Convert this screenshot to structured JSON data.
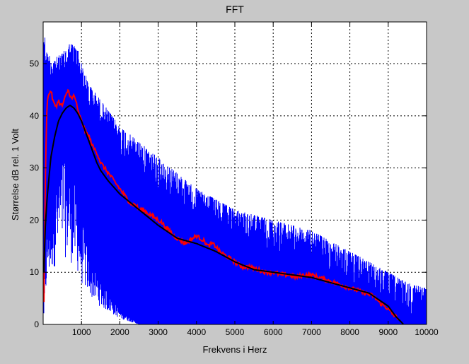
{
  "chart_data": {
    "type": "line",
    "title": "FFT",
    "xlabel": "Frekvens i Herz",
    "ylabel": "Størrelse dB rel. 1 Volt",
    "xlim": [
      0,
      10000
    ],
    "ylim": [
      0,
      58
    ],
    "grid": true,
    "x_ticks": [
      1000,
      2000,
      3000,
      4000,
      5000,
      6000,
      7000,
      8000,
      9000,
      10000
    ],
    "x_tick_labels": [
      "1000",
      "2000",
      "3000",
      "4000",
      "5000",
      "6000",
      "7000",
      "8000",
      "9000",
      "10000"
    ],
    "y_ticks": [
      0,
      10,
      20,
      30,
      40,
      50
    ],
    "y_tick_labels": [
      "0",
      "10",
      "20",
      "30",
      "40",
      "50"
    ],
    "background": "#c8c8c8",
    "plot_background": "#ffffff",
    "series": [
      {
        "kind": "raw-spectrum",
        "color": "#0000ff",
        "upper_envelope": {
          "x": [
            0,
            100,
            300,
            500,
            700,
            900,
            1000,
            1200,
            1500,
            2000,
            2500,
            3000,
            3500,
            4000,
            4500,
            5000,
            5500,
            6000,
            6500,
            7000,
            7500,
            8000,
            8500,
            9000,
            9500,
            10000
          ],
          "y": [
            58,
            52,
            51,
            52,
            54,
            53,
            50,
            46,
            43,
            38,
            35,
            32,
            29,
            26,
            24,
            22,
            21,
            20,
            19,
            18,
            16,
            14,
            12,
            10,
            8,
            7
          ]
        },
        "lower_envelope": {
          "x": [
            0,
            100,
            300,
            500,
            700,
            900,
            1000,
            1200,
            1500,
            2000,
            2500,
            3000,
            3500,
            4000,
            4500,
            5000,
            5500,
            6000,
            6500,
            7000,
            7500,
            8000,
            8500,
            9000,
            9500,
            10000
          ],
          "y": [
            0,
            14,
            20,
            24,
            22,
            18,
            14,
            10,
            6,
            2,
            0,
            0,
            0,
            0,
            0,
            0,
            0,
            0,
            0,
            0,
            0,
            0,
            0,
            0,
            0,
            0
          ]
        }
      },
      {
        "kind": "smoothed",
        "color": "#ff0000",
        "x": [
          20,
          50,
          100,
          150,
          200,
          250,
          300,
          350,
          400,
          450,
          500,
          550,
          600,
          650,
          700,
          750,
          800,
          850,
          900,
          950,
          1000,
          1100,
          1200,
          1300,
          1400,
          1500,
          1600,
          1700,
          1800,
          1900,
          2000,
          2100,
          2200,
          2300,
          2400,
          2500,
          2600,
          2700,
          2800,
          2900,
          3000,
          3100,
          3200,
          3300,
          3400,
          3500,
          3600,
          3700,
          3800,
          3900,
          4000,
          4100,
          4200,
          4300,
          4400,
          4500,
          4600,
          4700,
          4800,
          4900,
          5000,
          5200,
          5400,
          5600,
          5800,
          6000,
          6200,
          6400,
          6600,
          6800,
          7000,
          7200,
          7400,
          7600,
          7800,
          8000,
          8200,
          8400,
          8600,
          8800,
          9000,
          9100,
          9200,
          9300
        ],
        "y": [
          4,
          25,
          43,
          44,
          45,
          43,
          42,
          42,
          43,
          42,
          42,
          43,
          44,
          45,
          44,
          43,
          44,
          43,
          41,
          40,
          39,
          37,
          36,
          34,
          33,
          31,
          30,
          29,
          28,
          27,
          26,
          25,
          24,
          23,
          23,
          22,
          22,
          21.5,
          21,
          20.5,
          20,
          19.5,
          18.5,
          18,
          17,
          16.5,
          16,
          15.5,
          16,
          16.5,
          17,
          16.5,
          16,
          15,
          15.5,
          15,
          14,
          13.5,
          13,
          12.5,
          12,
          11,
          11,
          10.5,
          10,
          10,
          9.5,
          9.5,
          9,
          9.5,
          9.5,
          9,
          8.5,
          8,
          7.5,
          7,
          6.5,
          6,
          5.5,
          4,
          3,
          2,
          1.5,
          1
        ]
      },
      {
        "kind": "fit",
        "color": "#000000",
        "x": [
          20,
          50,
          100,
          150,
          200,
          300,
          400,
          500,
          600,
          700,
          800,
          900,
          1000,
          1100,
          1200,
          1300,
          1400,
          1500,
          1700,
          2000,
          2500,
          3000,
          3500,
          4000,
          4500,
          5000,
          5500,
          6000,
          6500,
          7000,
          7500,
          8000,
          8500,
          9000,
          9200,
          9400
        ],
        "y": [
          10,
          18,
          24,
          28,
          32,
          36,
          39,
          40.5,
          41.5,
          42,
          41.5,
          40.5,
          39,
          37,
          35,
          33,
          31,
          29.5,
          27.5,
          25,
          22,
          19,
          16.5,
          15.5,
          14,
          12,
          10.5,
          10,
          9.5,
          9,
          8,
          7,
          6,
          3.5,
          1.5,
          0
        ]
      }
    ]
  }
}
